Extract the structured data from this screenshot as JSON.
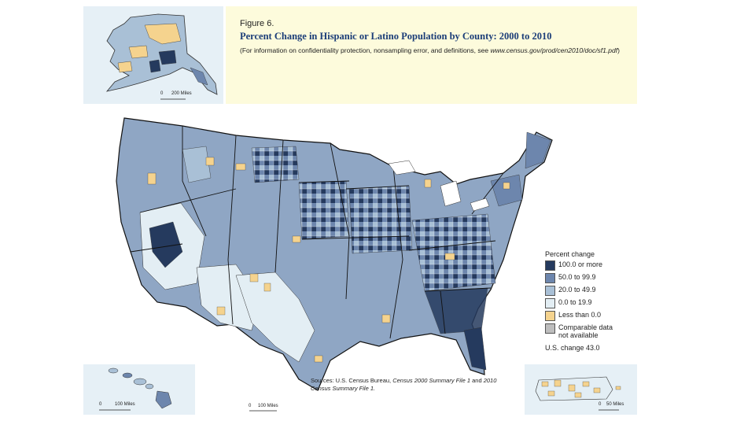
{
  "figure": {
    "label": "Figure 6.",
    "title": "Percent Change in Hispanic or Latino Population by County: 2000 to 2010",
    "note_prefix": "(For information on confidentiality protection, nonsampling error, and definitions, see",
    "note_url": "www.census.gov/prod/cen2010/doc/sf1.pdf",
    "note_suffix": ")"
  },
  "legend": {
    "title": "Percent change",
    "items": [
      {
        "label": "100.0 or more",
        "color": "#253a5e"
      },
      {
        "label": "50.0 to 99.9",
        "color": "#6d86ad"
      },
      {
        "label": "20.0 to 49.9",
        "color": "#a9c0d6"
      },
      {
        "label": "0.0 to 19.9",
        "color": "#e3eef4"
      },
      {
        "label": "Less than 0.0",
        "color": "#f5d38e"
      },
      {
        "label": "Comparable data not available",
        "color": "#bdbdbd"
      }
    ],
    "us_change": "U.S. change 43.0"
  },
  "sources": {
    "prefix": "Sources: U.S. Census Bureau, ",
    "italic1": "Census 2000 Summary File 1",
    "middle": " and ",
    "italic2": "2010 Census Summary File 1.",
    "suffix": ""
  },
  "scales": {
    "alaska": {
      "zero": "0",
      "value": "200 Miles"
    },
    "hawaii": {
      "zero": "0",
      "value": "100 Miles"
    },
    "conus": {
      "zero": "0",
      "value": "100 Miles"
    },
    "puerto_rico": {
      "zero": "0",
      "value": "50 Miles"
    }
  },
  "colors": {
    "inset_bg": "#e6f0f6",
    "title_bg": "#fdfbdc",
    "title_text": "#1b3d78",
    "state_border": "#111111"
  }
}
